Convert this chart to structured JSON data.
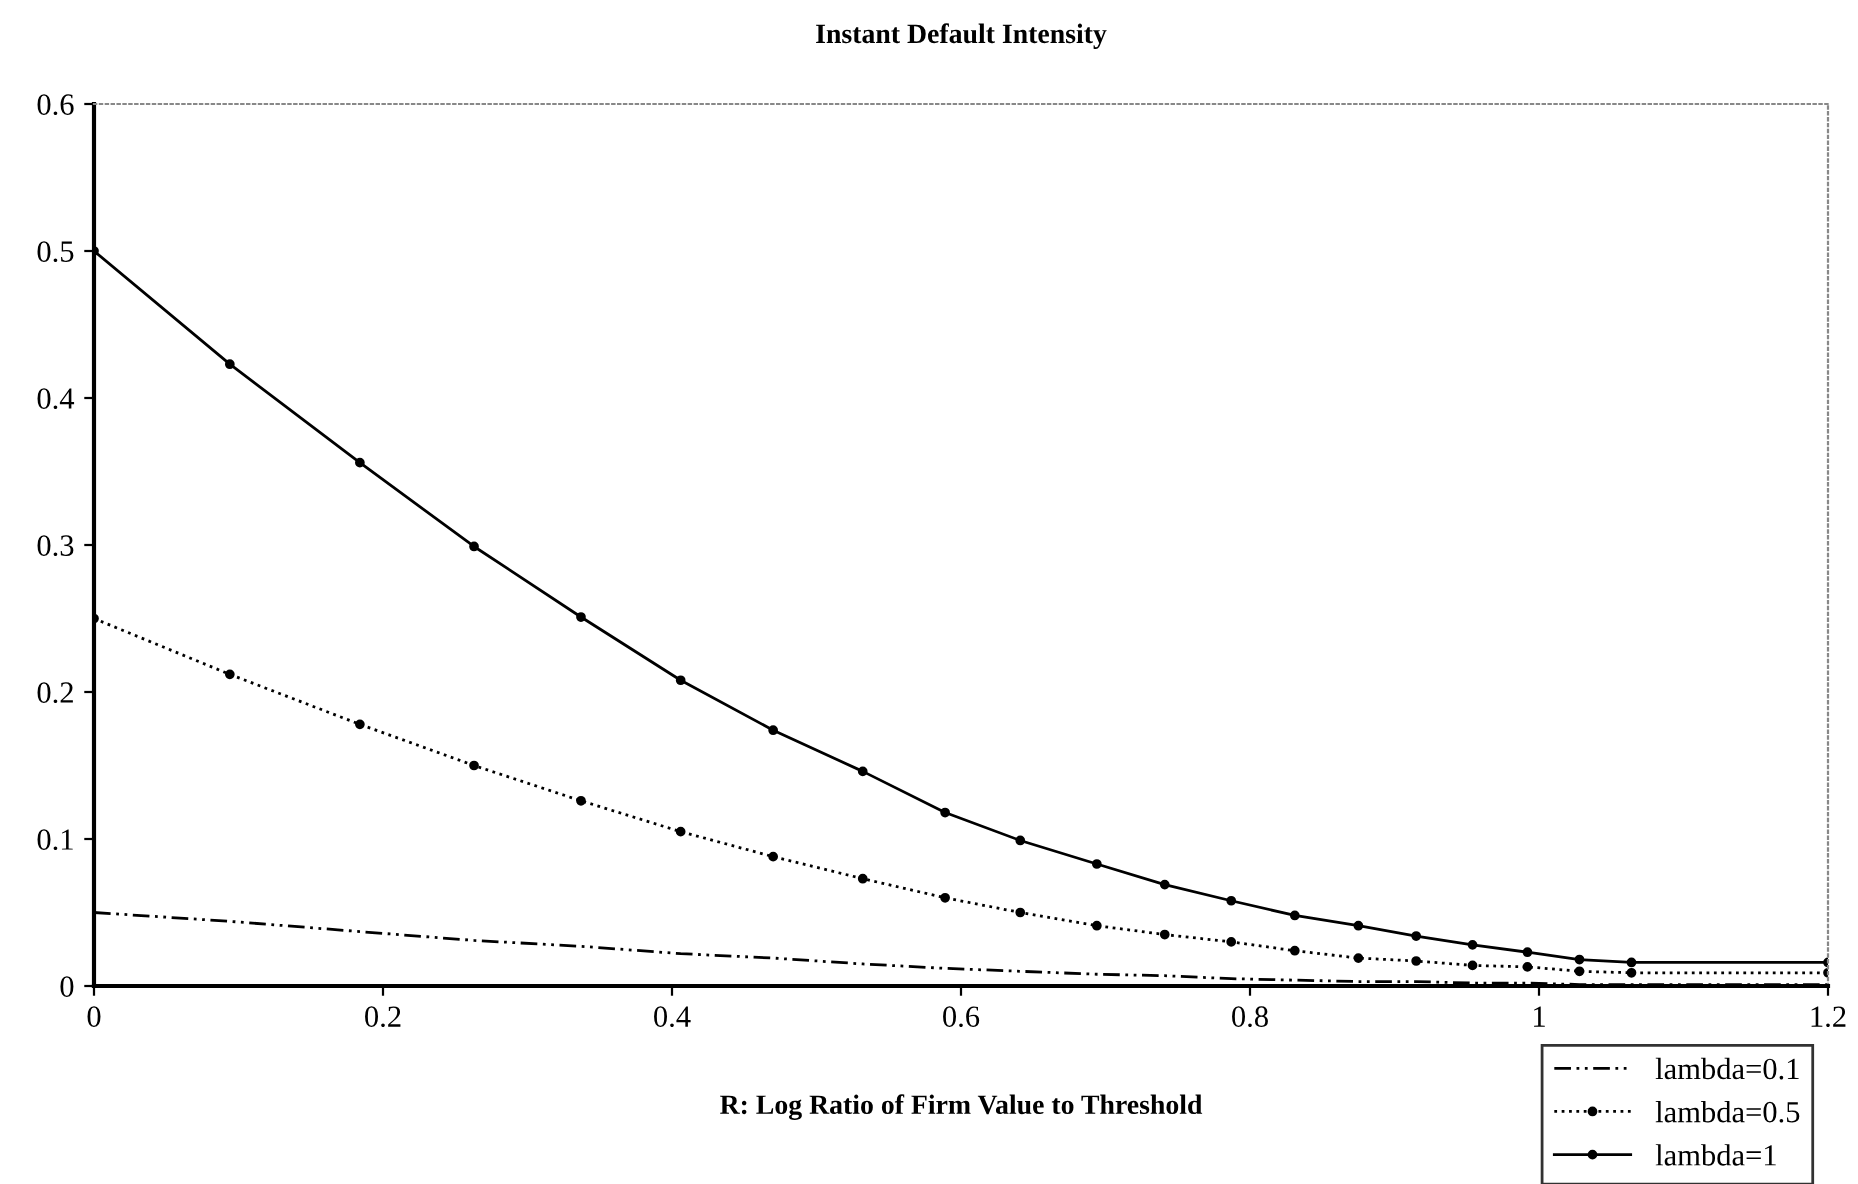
{
  "chart_data": {
    "type": "line",
    "title": "Instant Default Intensity",
    "xlabel": "R: Log Ratio of Firm Value to Threshold",
    "x": [
      0,
      0.094,
      0.184,
      0.263,
      0.337,
      0.406,
      0.47,
      0.532,
      0.589,
      0.641,
      0.694,
      0.741,
      0.787,
      0.831,
      0.875,
      0.915,
      0.954,
      0.992,
      1.028,
      1.064,
      1.2
    ],
    "series": [
      {
        "name": "lambda=0.1",
        "color": "#000000",
        "line_style": "dashdot",
        "marker": "none",
        "values": [
          0.05,
          0.044,
          0.037,
          0.031,
          0.027,
          0.022,
          0.019,
          0.015,
          0.012,
          0.01,
          0.008,
          0.007,
          0.005,
          0.004,
          0.003,
          0.003,
          0.002,
          0.002,
          0.001,
          0.001,
          0.001
        ]
      },
      {
        "name": "lambda=0.5",
        "color": "#000000",
        "line_style": "dotted",
        "marker": "circle",
        "values": [
          0.25,
          0.212,
          0.178,
          0.15,
          0.126,
          0.105,
          0.088,
          0.073,
          0.06,
          0.05,
          0.041,
          0.035,
          0.03,
          0.024,
          0.019,
          0.017,
          0.014,
          0.013,
          0.01,
          0.009,
          0.009
        ]
      },
      {
        "name": "lambda=1",
        "color": "#000000",
        "line_style": "solid",
        "marker": "circle",
        "values": [
          0.5,
          0.423,
          0.356,
          0.299,
          0.251,
          0.208,
          0.174,
          0.146,
          0.118,
          0.099,
          0.083,
          0.069,
          0.058,
          0.048,
          0.041,
          0.034,
          0.028,
          0.023,
          0.018,
          0.016,
          0.016
        ]
      }
    ],
    "xlim": [
      0,
      1.2
    ],
    "xticks": [
      0,
      0.2,
      0.4,
      0.6,
      0.8,
      1,
      1.2
    ],
    "ylim": [
      0,
      0.6
    ],
    "yticks": [
      0,
      0.1,
      0.2,
      0.3,
      0.4,
      0.5,
      0.6
    ],
    "grid": false,
    "legend": "bottom right"
  }
}
